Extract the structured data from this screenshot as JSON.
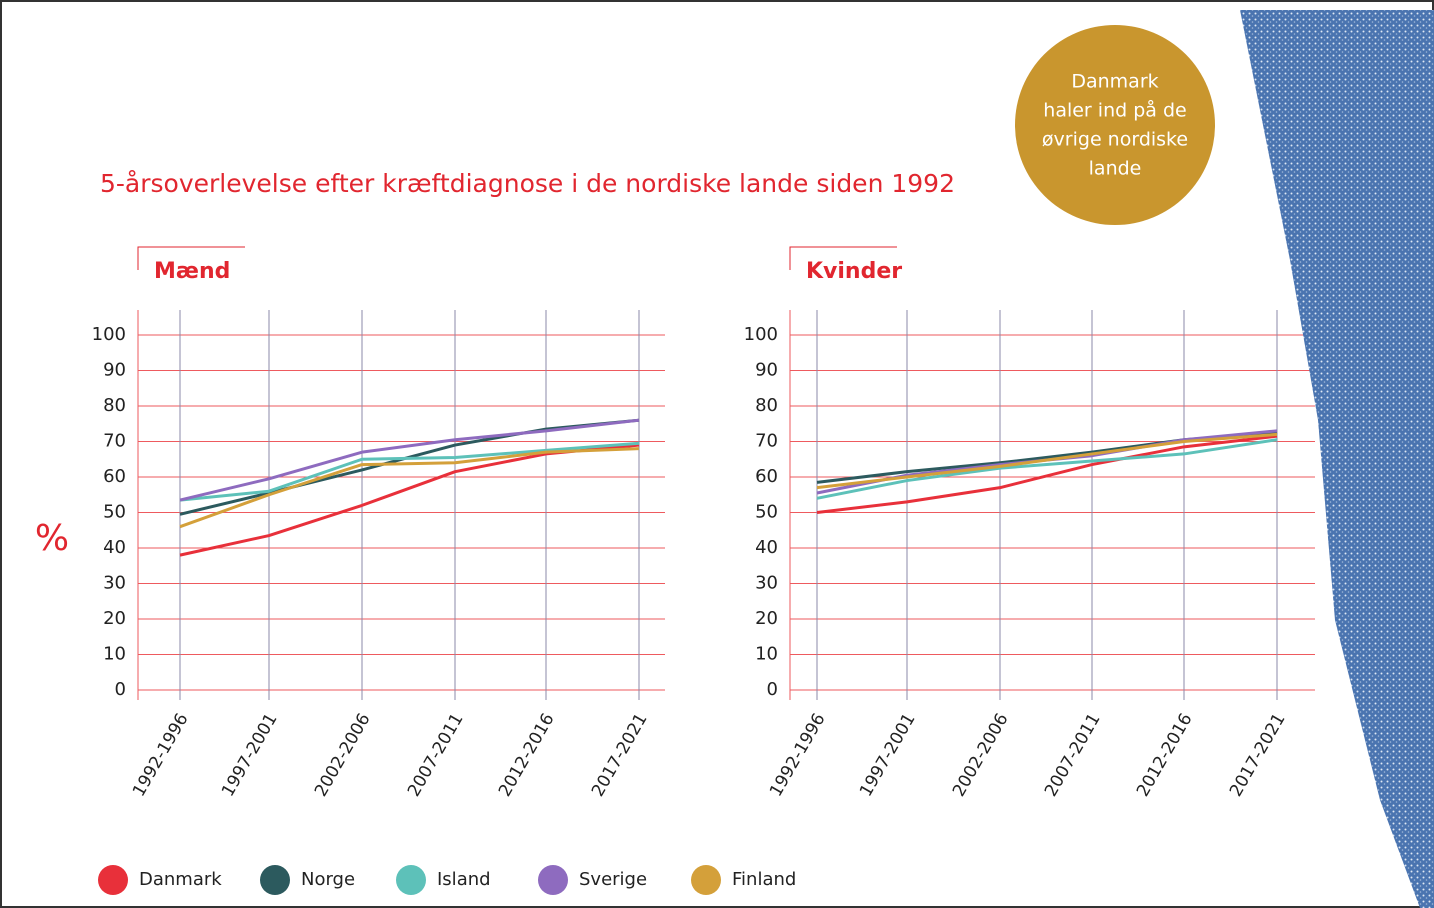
{
  "header": {
    "title": "5-årsoverlevelse efter kræftdiagnose i de nordiske lande siden 1992",
    "y_label": "%",
    "badge": [
      "Danmark",
      "haler ind på de",
      "øvrige nordiske",
      "lande"
    ]
  },
  "chart_data": [
    {
      "type": "line",
      "title": "Mænd",
      "categories": [
        "1992-1996",
        "1997-2001",
        "2002-2006",
        "2007-2011",
        "2012-2016",
        "2017-2021"
      ],
      "ylim": [
        0,
        100
      ],
      "yticks": [
        0,
        10,
        20,
        30,
        40,
        50,
        60,
        70,
        80,
        90,
        100
      ],
      "grid": true,
      "series": [
        {
          "name": "Danmark",
          "color": "#e8303a",
          "values": [
            38,
            43.5,
            52,
            61.5,
            66.5,
            69
          ]
        },
        {
          "name": "Norge",
          "color": "#2c5a5e",
          "values": [
            49.5,
            55.5,
            62,
            69,
            73.5,
            76
          ]
        },
        {
          "name": "Island",
          "color": "#5dc1b9",
          "values": [
            53.5,
            56,
            65,
            65.5,
            67.5,
            69.5
          ]
        },
        {
          "name": "Sverige",
          "color": "#8e6bbf",
          "values": [
            53.5,
            59.5,
            67,
            70.5,
            73,
            76
          ]
        },
        {
          "name": "Finland",
          "color": "#d4a03a",
          "values": [
            46,
            55,
            63.5,
            64,
            67,
            68
          ]
        }
      ]
    },
    {
      "type": "line",
      "title": "Kvinder",
      "categories": [
        "1992-1996",
        "1997-2001",
        "2002-2006",
        "2007-2011",
        "2012-2016",
        "2017-2021"
      ],
      "ylim": [
        0,
        100
      ],
      "yticks": [
        0,
        10,
        20,
        30,
        40,
        50,
        60,
        70,
        80,
        90,
        100
      ],
      "grid": true,
      "series": [
        {
          "color": "#e8303a",
          "values": [
            50,
            53,
            57,
            63.5,
            68.5,
            71.5
          ]
        },
        {
          "color": "#2c5a5e",
          "values": [
            58.5,
            61.5,
            64,
            67,
            70.5,
            72.5
          ]
        },
        {
          "color": "#5dc1b9",
          "values": [
            54,
            59,
            62.5,
            64.5,
            66.5,
            70.5
          ]
        },
        {
          "color": "#8e6bbf",
          "values": [
            55.5,
            60.5,
            63.5,
            66,
            70.5,
            73
          ]
        },
        {
          "color": "#d4a03a",
          "values": [
            57,
            60,
            63,
            66.5,
            70,
            72
          ]
        }
      ]
    }
  ]
}
